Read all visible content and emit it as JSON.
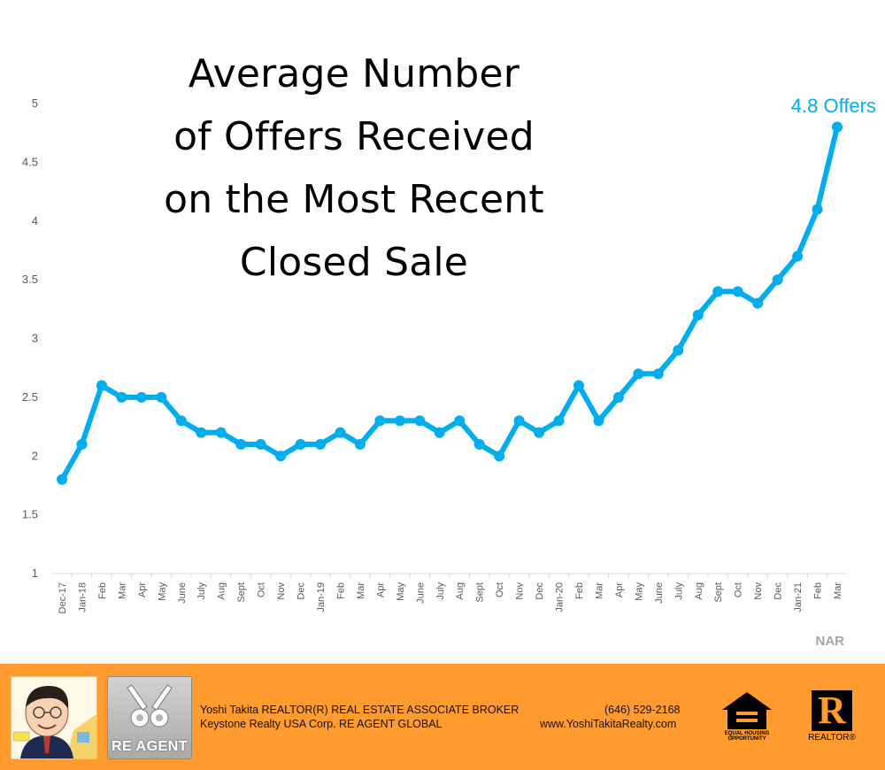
{
  "chart_data": {
    "type": "line",
    "title": [
      "Average Number",
      "of Offers Received",
      "on the Most Recent",
      "Closed Sale"
    ],
    "categories": [
      "Dec-17",
      "Jan-18",
      "Feb",
      "Mar",
      "Apr",
      "May",
      "June",
      "July",
      "Aug",
      "Sept",
      "Oct",
      "Nov",
      "Dec",
      "Jan-19",
      "Feb",
      "Mar",
      "Apr",
      "May",
      "June",
      "July",
      "Aug",
      "Sept",
      "Oct",
      "Nov",
      "Dec",
      "Jan-20",
      "Feb",
      "Mar",
      "Apr",
      "May",
      "June",
      "July",
      "Aug",
      "Sept",
      "Oct",
      "Nov",
      "Dec",
      "Jan-21",
      "Feb",
      "Mar"
    ],
    "series": [
      {
        "values": [
          1.8,
          2.1,
          2.6,
          2.5,
          2.5,
          2.5,
          2.3,
          2.2,
          2.2,
          2.1,
          2.1,
          2.0,
          2.1,
          2.1,
          2.2,
          2.1,
          2.3,
          2.3,
          2.3,
          2.2,
          2.3,
          2.1,
          2.0,
          2.3,
          2.2,
          2.3,
          2.6,
          2.3,
          2.5,
          2.7,
          2.7,
          2.9,
          3.2,
          3.4,
          3.4,
          3.3,
          3.5,
          3.7,
          4.1,
          4.8
        ]
      }
    ],
    "ylim": [
      1,
      5
    ],
    "yticks": [
      "1",
      "1.5",
      "2",
      "2.5",
      "3",
      "3.5",
      "4",
      "4.5",
      "5"
    ],
    "grid": false,
    "line_color": "#00aeef",
    "annotation": "4.8 Offers",
    "source": "NAR"
  },
  "footer": {
    "background": "#ff9b2f",
    "agent_line1": "Yoshi Takita REALTOR(R) REAL ESTATE ASSOCIATE BROKER",
    "agent_line2": "Keystone Realty USA Corp.  RE AGENT GLOBAL",
    "phone": "(646) 529-2168",
    "website": "www.YoshiTakitaRealty.com",
    "reagent_logo_text": "RE AGENT",
    "eho_text_1": "EQUAL HOUSING",
    "eho_text_2": "OPPORTUNITY",
    "realtor_mark": "R",
    "realtor_label": "REALTOR®"
  }
}
